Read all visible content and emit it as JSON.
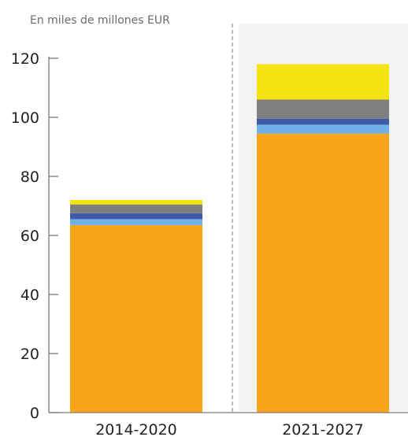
{
  "chart_data": {
    "type": "bar",
    "stacked": true,
    "unit_label": "En miles de millones EUR",
    "categories": [
      "2014-2020",
      "2021-2027"
    ],
    "ylim": [
      0,
      120
    ],
    "yticks": [
      "0",
      "20",
      "40",
      "60",
      "80",
      "100",
      "120"
    ],
    "series": [
      {
        "color": "#f9a51c",
        "values": [
          63.5,
          94.5
        ]
      },
      {
        "color": "#6fb1e8",
        "values": [
          2.0,
          3.0
        ]
      },
      {
        "color": "#3e5aa8",
        "values": [
          2.0,
          2.0
        ]
      },
      {
        "color": "#7f7f7f",
        "values": [
          3.0,
          6.5
        ]
      },
      {
        "color": "#f5e312",
        "values": [
          1.5,
          12.0
        ]
      }
    ],
    "highlight_category_background": "#f2f2f2",
    "separator_color": "#bdbdbd",
    "axis_color": "#7a7a7a"
  }
}
